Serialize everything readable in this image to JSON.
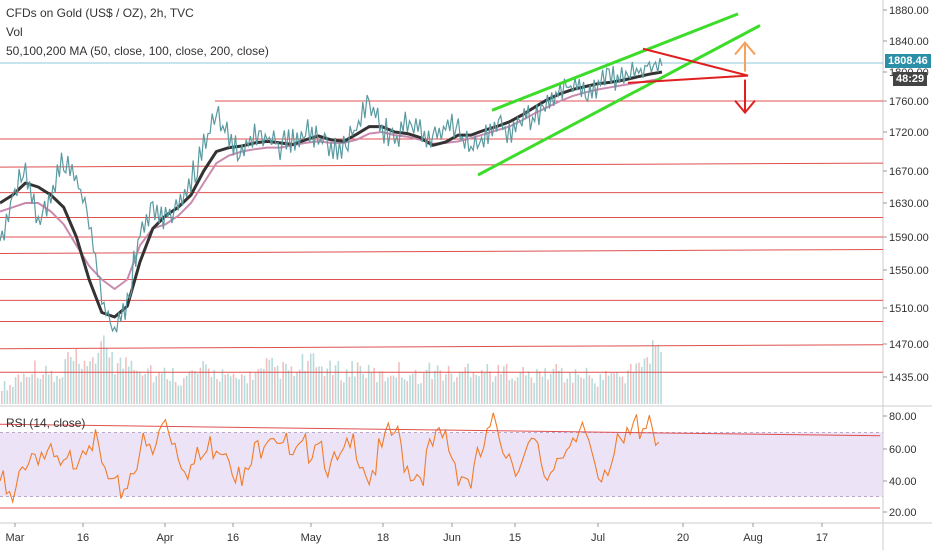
{
  "header": {
    "title": "CFDs on Gold (US$ / OZ), 2h, TVC",
    "vol_label": "Vol",
    "ma_label": "50,100,200 MA (50, close, 100, close, 200, close)",
    "rsi_label": "RSI (14, close)"
  },
  "price_tag": {
    "price": "1808.46",
    "countdown": "48:29"
  },
  "colors": {
    "rsi_fill": "#ede3f7",
    "rsi_line": "#f07c29",
    "horizontal_lines": "#e05050",
    "channel": "#3ddc2a",
    "ma_fast": "#333333",
    "ma_slow": "#c98ab0",
    "price": "#5a9aa0",
    "arrow_up": "#f5a25c",
    "arrow_down": "#e02020",
    "price_tag_bg": "#2b8fa8",
    "countdown_bg": "#444444"
  },
  "chart_data": [
    {
      "type": "line",
      "name": "price",
      "y_ticks": [
        1880,
        1840,
        1800,
        1760,
        1720,
        1670,
        1630,
        1590,
        1550,
        1510,
        1470,
        1435
      ],
      "y_tick_labels": [
        "1880.00",
        "1840.00",
        "1800.00",
        "1760.00",
        "1720.00",
        "1670.00",
        "1630.00",
        "1590.00",
        "1550.00",
        "1510.00",
        "1470.00",
        "1435.00"
      ],
      "x_tick_labels": [
        "Mar",
        "16",
        "Apr",
        "16",
        "May",
        "18",
        "Jun",
        "15",
        "Jul",
        "20",
        "Aug",
        "17"
      ],
      "close": [
        1585,
        1640,
        1672,
        1600,
        1640,
        1683,
        1660,
        1608,
        1520,
        1480,
        1520,
        1595,
        1625,
        1615,
        1630,
        1660,
        1700,
        1740,
        1715,
        1690,
        1722,
        1715,
        1702,
        1710,
        1725,
        1712,
        1700,
        1702,
        1725,
        1765,
        1725,
        1710,
        1735,
        1725,
        1705,
        1730,
        1722,
        1696,
        1715,
        1730,
        1720,
        1740,
        1735,
        1760,
        1775,
        1782,
        1773,
        1783,
        1790,
        1794,
        1798,
        1812,
        1808
      ],
      "ma_fast": [
        1630,
        1640,
        1655,
        1650,
        1640,
        1625,
        1590,
        1540,
        1505,
        1500,
        1512,
        1560,
        1600,
        1615,
        1625,
        1640,
        1670,
        1695,
        1700,
        1702,
        1706,
        1708,
        1706,
        1704,
        1710,
        1715,
        1710,
        1708,
        1717,
        1727,
        1727,
        1720,
        1718,
        1713,
        1703,
        1707,
        1716,
        1716,
        1722,
        1727,
        1733,
        1742,
        1752,
        1762,
        1770,
        1776,
        1780,
        1784,
        1786,
        1789,
        1793,
        1797,
        1800
      ],
      "ma_slow": [
        1620,
        1625,
        1630,
        1630,
        1620,
        1605,
        1580,
        1555,
        1540,
        1530,
        1540,
        1580,
        1600,
        1605,
        1615,
        1630,
        1655,
        1680,
        1690,
        1695,
        1698,
        1700,
        1700,
        1703,
        1706,
        1708,
        1706,
        1706,
        1710,
        1718,
        1720,
        1716,
        1714,
        1710,
        1705,
        1706,
        1708,
        1712,
        1717,
        1722,
        1727,
        1735,
        1744,
        1752,
        1760,
        1767,
        1772,
        1776,
        1779,
        1782,
        1785,
        1788,
        1791
      ],
      "support_resistance_levels": [
        1760,
        1711,
        1675,
        1643,
        1613,
        1590,
        1570,
        1540,
        1518,
        1495,
        1465,
        1440
      ],
      "channel_upper": [
        [
          1575,
          1748
        ],
        [
          1735,
          1875
        ]
      ],
      "channel_lower": [
        [
          1565,
          1665
        ],
        [
          1760,
          1860
        ]
      ],
      "triangle": {
        "apex": 1830,
        "base": 1785,
        "tip": 1795
      },
      "arrow_up_target": 1838,
      "arrow_down_target": 1745
    },
    {
      "type": "bar",
      "name": "volume",
      "relative_values": [
        0.3,
        0.45,
        0.6,
        0.5,
        0.4,
        0.7,
        0.55,
        0.8,
        0.9,
        0.65,
        0.7,
        0.6,
        0.45,
        0.5,
        0.4,
        0.5,
        0.55,
        0.5,
        0.4,
        0.45,
        0.5,
        0.6,
        0.55,
        0.5,
        0.65,
        0.6,
        0.55,
        0.5,
        0.6,
        0.5,
        0.45,
        0.55,
        0.5,
        0.45,
        0.55,
        0.5,
        0.45,
        0.6,
        0.55,
        0.5,
        0.55,
        0.5,
        0.45,
        0.5,
        0.55,
        0.45,
        0.5,
        0.4,
        0.5,
        0.45,
        0.55,
        0.7,
        0.9
      ]
    },
    {
      "type": "line",
      "name": "RSI",
      "ylim": [
        15,
        85
      ],
      "y_ticks": [
        80,
        60,
        40,
        20
      ],
      "y_tick_labels": [
        "80.00",
        "60.00",
        "40.00",
        "20.00"
      ],
      "band": [
        30,
        70
      ],
      "values": [
        40,
        22,
        55,
        60,
        52,
        44,
        58,
        72,
        48,
        30,
        40,
        62,
        55,
        80,
        60,
        48,
        55,
        66,
        62,
        35,
        55,
        75,
        70,
        50,
        58,
        72,
        46,
        52,
        65,
        44,
        58,
        70,
        50,
        45,
        60,
        66,
        48,
        40,
        60,
        75,
        58,
        50,
        60,
        42,
        64,
        55,
        70,
        48,
        55,
        60,
        74,
        82,
        60
      ],
      "trendline": [
        [
          0,
          75
        ],
        [
          52,
          68
        ]
      ]
    }
  ]
}
